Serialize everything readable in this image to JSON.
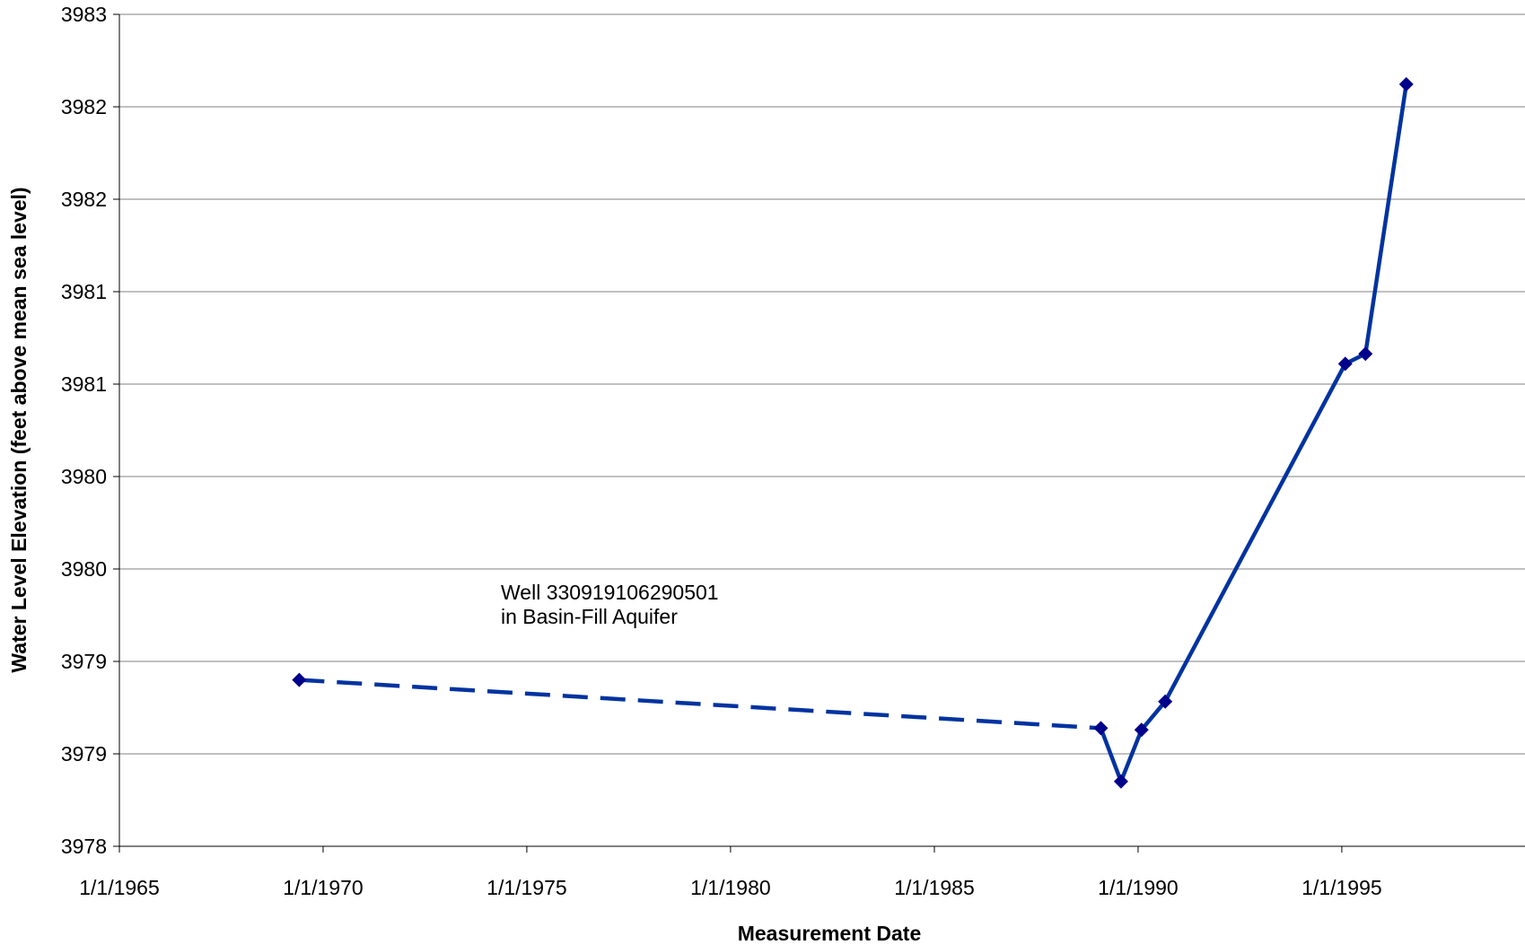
{
  "chart_data": {
    "type": "line",
    "xlabel": "Measurement Date",
    "ylabel": "Water Level Elevation (feet above mean sea level)",
    "x_tick_labels": [
      "1/1/1965",
      "1/1/1970",
      "1/1/1975",
      "1/1/1980",
      "1/1/1985",
      "1/1/1990",
      "1/1/1995"
    ],
    "y_tick_labels": [
      "3978",
      "3979",
      "3979",
      "3980",
      "3980",
      "3981",
      "3981",
      "3982",
      "3982",
      "3983"
    ],
    "xlim": [
      "1965-01-01",
      "1999-07-01"
    ],
    "ylim": [
      3978,
      3983
    ],
    "grid": "horizontal",
    "annotation": {
      "line1": "Well 330919106290501",
      "line2": "in Basin-Fill Aquifer"
    },
    "series": [
      {
        "color": "#0033a0",
        "marker_color": "#00008b",
        "points": [
          {
            "x": "1969-06-01",
            "y": 3979.0,
            "segment": "dashed"
          },
          {
            "x": "1989-02-01",
            "y": 3978.71
          },
          {
            "x": "1989-08-01",
            "y": 3978.39
          },
          {
            "x": "1990-02-01",
            "y": 3978.7
          },
          {
            "x": "1990-09-01",
            "y": 3978.87
          },
          {
            "x": "1995-02-01",
            "y": 3980.9
          },
          {
            "x": "1995-08-01",
            "y": 3980.96
          },
          {
            "x": "1996-08-01",
            "y": 3982.58
          }
        ]
      }
    ]
  }
}
